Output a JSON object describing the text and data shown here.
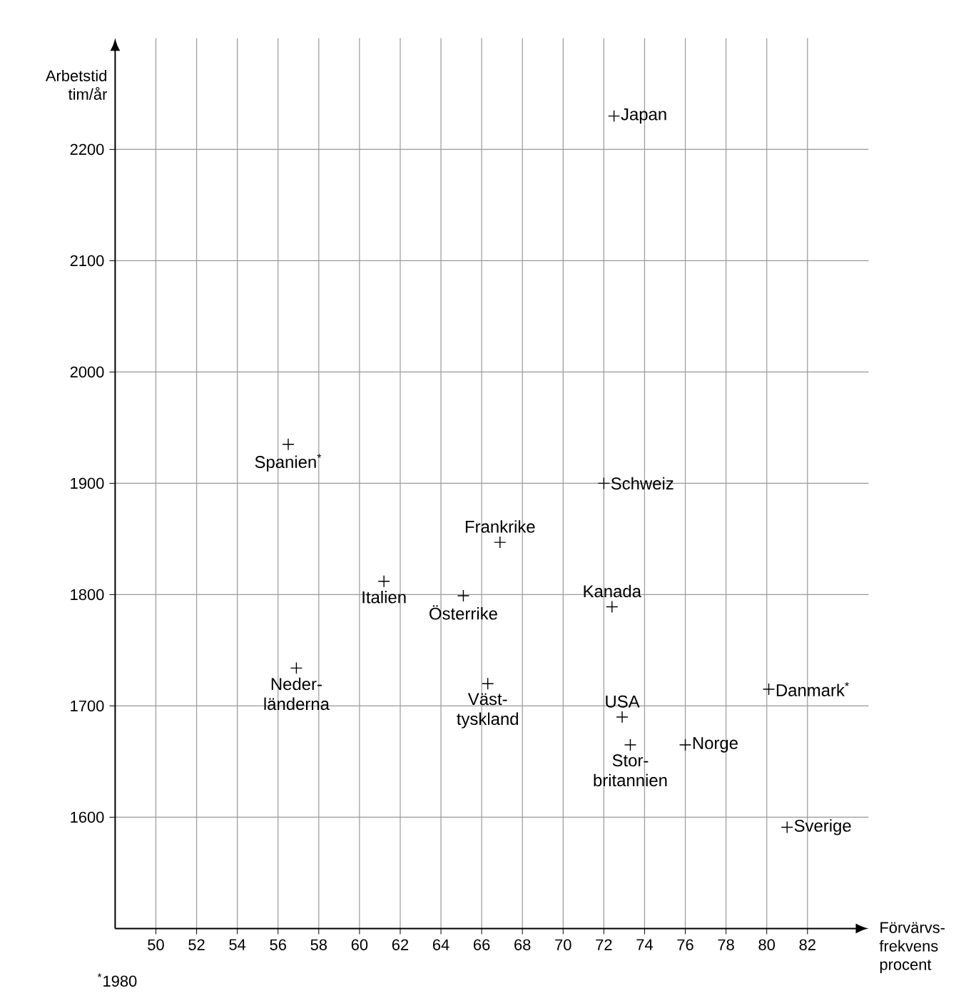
{
  "chart_data": {
    "type": "scatter",
    "xlabel": "Förvärvs-frekvens procent",
    "ylabel": "Arbetstid tim/år",
    "x": [
      72.5,
      72.0,
      56.5,
      66.9,
      61.2,
      65.1,
      72.4,
      56.9,
      66.3,
      80.1,
      72.9,
      73.3,
      76.0,
      81.0
    ],
    "values": [
      2230,
      1900,
      1935,
      1847,
      1812,
      1799,
      1789,
      1734,
      1720,
      1715,
      1690,
      1665,
      1665,
      1591
    ],
    "color": "#000000",
    "marker": "cross",
    "grid": true,
    "xlim": [
      48,
      85
    ],
    "ylim": [
      1500,
      2300
    ],
    "xticks": [
      50,
      52,
      54,
      56,
      58,
      60,
      62,
      64,
      66,
      68,
      70,
      72,
      74,
      76,
      78,
      80,
      82
    ],
    "yticks": [
      1600,
      1700,
      1800,
      1900,
      2000,
      2100,
      2200
    ],
    "annotations": [
      {
        "text": "Japan",
        "x": 72.5,
        "y": 2230
      },
      {
        "text": "Schweiz",
        "x": 72.0,
        "y": 1900
      },
      {
        "text": "Spanien$^{*}$",
        "x": 56.5,
        "y": 1935
      },
      {
        "text": "Frankrike",
        "x": 66.9,
        "y": 1847
      },
      {
        "text": "Italien",
        "x": 61.2,
        "y": 1812
      },
      {
        "text": "Österrike",
        "x": 65.1,
        "y": 1799
      },
      {
        "text": "Kanada",
        "x": 72.4,
        "y": 1789
      },
      {
        "text": "Neder-länderna",
        "x": 56.9,
        "y": 1734
      },
      {
        "text": "Väst-tyskland",
        "x": 66.3,
        "y": 1720
      },
      {
        "text": "Danmark$^{*}$",
        "x": 80.1,
        "y": 1715
      },
      {
        "text": "USA",
        "x": 72.9,
        "y": 1690
      },
      {
        "text": "Stor-britannien",
        "x": 73.3,
        "y": 1665
      },
      {
        "text": "Norge",
        "x": 76.0,
        "y": 1665
      },
      {
        "text": "Sverige",
        "x": 81.0,
        "y": 1591
      },
      "$^{*}$1980"
    ]
  }
}
